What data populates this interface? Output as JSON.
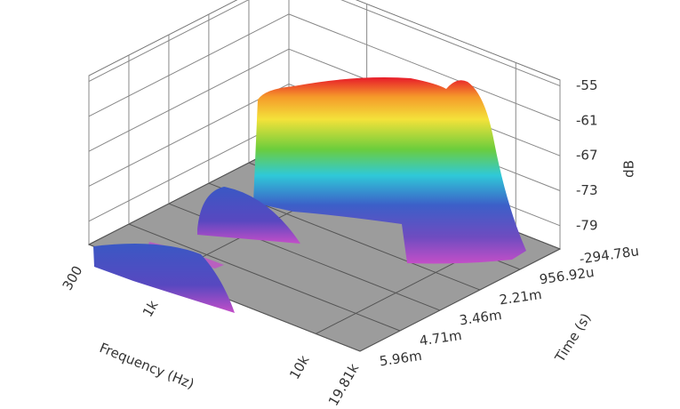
{
  "chart_data": {
    "type": "waterfall3d",
    "x_label": "Frequency (Hz)",
    "y_label": "Time (s)",
    "z_label": "dB",
    "xscale": "log",
    "xlim": [
      300,
      19810
    ],
    "xticks": [
      300,
      {
        "value": 1000,
        "label": "1k"
      },
      {
        "value": 10000,
        "label": "10k"
      },
      {
        "value": 19810,
        "label": "19.81k"
      }
    ],
    "ylim": [
      -0.00029478,
      0.00596
    ],
    "yticks": [
      {
        "value": -0.00029478,
        "label": "-294.78u"
      },
      {
        "value": 0.00095692,
        "label": "956.92u"
      },
      {
        "value": 0.00221,
        "label": "2.21m"
      },
      {
        "value": 0.00346,
        "label": "3.46m"
      },
      {
        "value": 0.00471,
        "label": "4.71m"
      },
      {
        "value": 0.00596,
        "label": "5.96m"
      }
    ],
    "zlim": [
      -83,
      -54
    ],
    "zticks": [
      -55,
      -61,
      -67,
      -73,
      -79
    ],
    "grid": true
  }
}
